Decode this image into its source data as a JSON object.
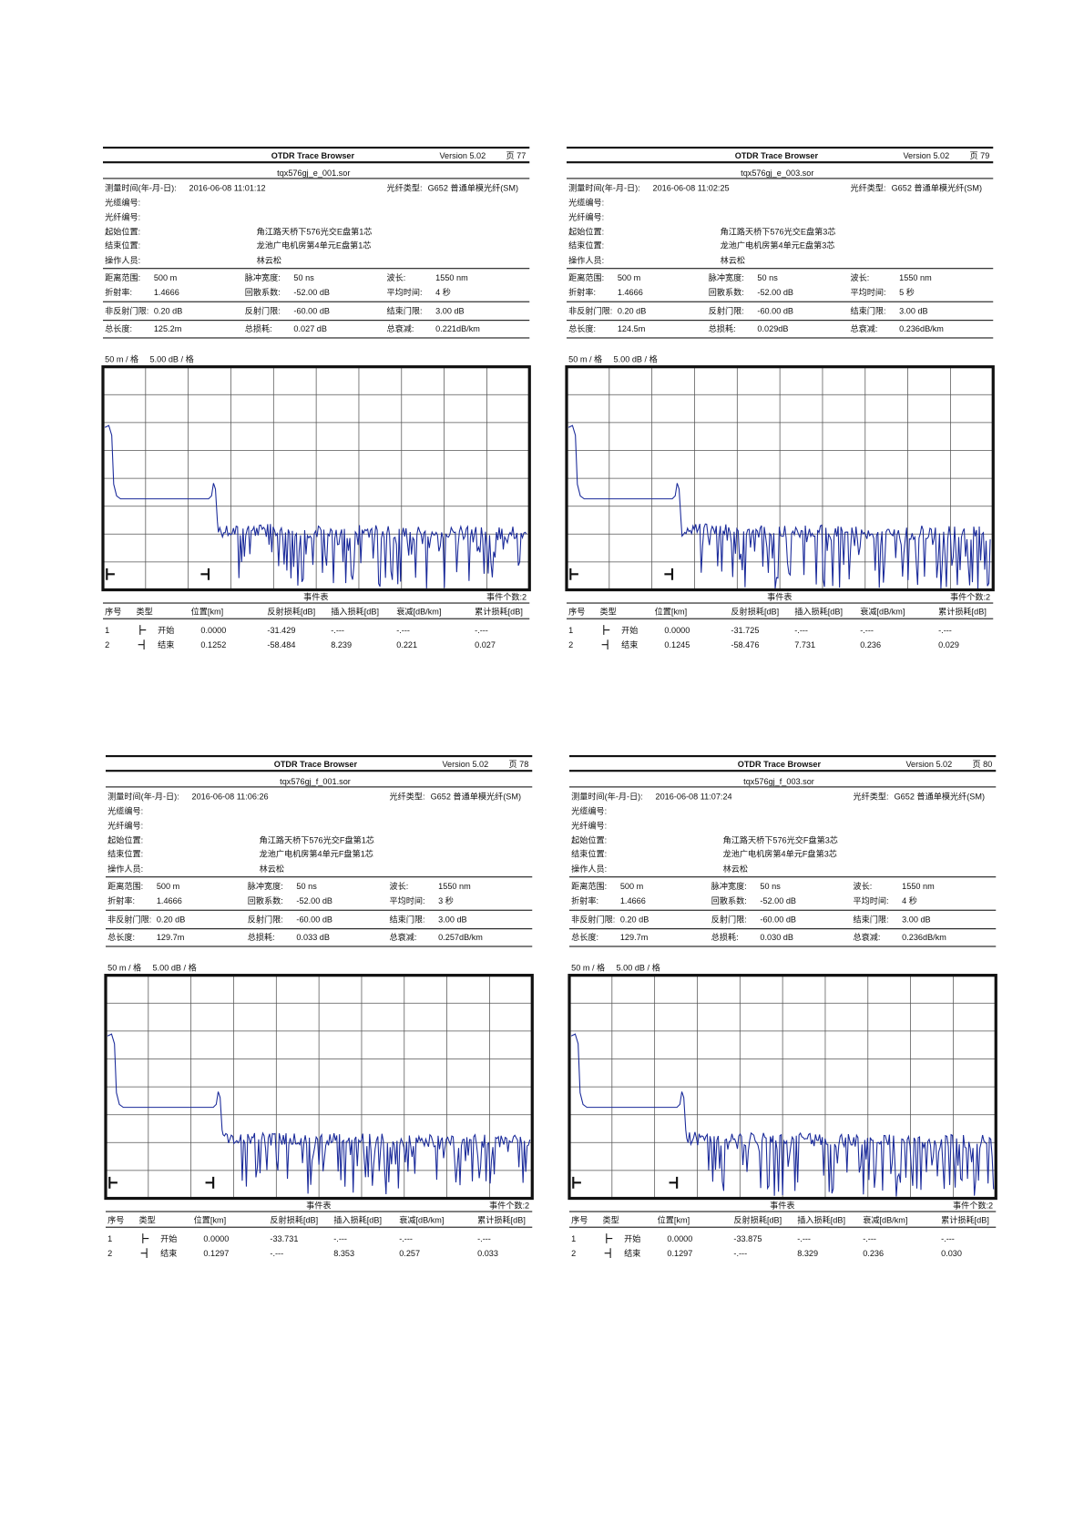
{
  "panels": [
    {
      "app": "OTDR Trace Browser",
      "version": "Version 5.02",
      "page": "页 77",
      "file": "tqx576gj_e_001.sor",
      "info": [
        {
          "label": "测量时间(年-月-日):",
          "value": "2016-06-08  11:01:12"
        },
        {
          "label": "光缆编号:"
        },
        {
          "label": "光纤编号:"
        },
        {
          "label": "起始位置:",
          "value": "角江路天桥下576光交E盘第1芯"
        },
        {
          "label": "结束位置:",
          "value": "龙池广电机房第4单元E盘第1芯"
        },
        {
          "label": "操作人员:",
          "value": "林云松"
        }
      ],
      "fiber": {
        "label": "光纤类型:",
        "value": "G652 普通单模光纤(SM)"
      },
      "params": [
        [
          {
            "label": "距离范围:",
            "value": "500 m"
          },
          {
            "label": "脉冲宽度:",
            "value": "50 ns"
          },
          {
            "label": "波长:",
            "value": "1550 nm"
          }
        ],
        [
          {
            "label": "折射率:",
            "value": "1.4666"
          },
          {
            "label": "回散系数:",
            "value": "-52.00 dB"
          },
          {
            "label": "平均时间:",
            "value": "4 秒"
          }
        ],
        [
          {
            "label": "非反射门限:",
            "value": "0.20 dB"
          },
          {
            "label": "反射门限:",
            "value": "-60.00 dB"
          },
          {
            "label": "结束门限:",
            "value": "3.00 dB"
          }
        ],
        [
          {
            "label": "总长度:",
            "value": "125.2m"
          },
          {
            "label": "总损耗:",
            "value": "0.027 dB"
          },
          {
            "label": "总衰减:",
            "value": "0.221dB/km"
          }
        ]
      ],
      "scale": [
        "50 m / 格",
        "5.00 dB / 格"
      ],
      "events_title": "事件表",
      "events_count": "事件个数:2",
      "headers": [
        "序号",
        "类型",
        "位置[km]",
        "反射损耗[dB]",
        "插入损耗[dB]",
        "衰减[dB/km]",
        "累计损耗[dB]"
      ],
      "rows": [
        [
          "1",
          "开始",
          "0.0000",
          "-31.429",
          "-.---",
          "-.---",
          "-.---"
        ],
        [
          "2",
          "结束",
          "0.1252",
          "-58.484",
          "8.239",
          "0.221",
          "0.027"
        ]
      ]
    },
    {
      "app": "OTDR Trace Browser",
      "version": "Version 5.02",
      "page": "页 79",
      "file": "tqx576gj_e_003.sor",
      "info": [
        {
          "label": "测量时间(年-月-日):",
          "value": "2016-06-08  11:02:25"
        },
        {
          "label": "光缆编号:"
        },
        {
          "label": "光纤编号:"
        },
        {
          "label": "起始位置:",
          "value": "角江路天桥下576光交E盘第3芯"
        },
        {
          "label": "结束位置:",
          "value": "龙池广电机房第4单元E盘第3芯"
        },
        {
          "label": "操作人员:",
          "value": "林云松"
        }
      ],
      "fiber": {
        "label": "光纤类型:",
        "value": "G652 普通单模光纤(SM)"
      },
      "params": [
        [
          {
            "label": "距离范围:",
            "value": "500 m"
          },
          {
            "label": "脉冲宽度:",
            "value": "50 ns"
          },
          {
            "label": "波长:",
            "value": "1550 nm"
          }
        ],
        [
          {
            "label": "折射率:",
            "value": "1.4666"
          },
          {
            "label": "回散系数:",
            "value": "-52.00 dB"
          },
          {
            "label": "平均时间:",
            "value": "5 秒"
          }
        ],
        [
          {
            "label": "非反射门限:",
            "value": "0.20 dB"
          },
          {
            "label": "反射门限:",
            "value": "-60.00 dB"
          },
          {
            "label": "结束门限:",
            "value": "3.00 dB"
          }
        ],
        [
          {
            "label": "总长度:",
            "value": "124.5m"
          },
          {
            "label": "总损耗:",
            "value": "0.029dB"
          },
          {
            "label": "总衰减:",
            "value": "0.236dB/km"
          }
        ]
      ],
      "scale": [
        "50 m / 格",
        "5.00 dB / 格"
      ],
      "events_title": "事件表",
      "events_count": "事件个数:2",
      "headers": [
        "序号",
        "类型",
        "位置[km]",
        "反射损耗[dB]",
        "插入损耗[dB]",
        "衰减[dB/km]",
        "累计损耗[dB]"
      ],
      "rows": [
        [
          "1",
          "开始",
          "0.0000",
          "-31.725",
          "-.---",
          "-.---",
          "-.---"
        ],
        [
          "2",
          "结束",
          "0.1245",
          "-58.476",
          "7.731",
          "0.236",
          "0.029"
        ]
      ]
    },
    {
      "app": "OTDR Trace Browser",
      "version": "Version 5.02",
      "page": "页 78",
      "file": "tqx576gj_f_001.sor",
      "info": [
        {
          "label": "测量时间(年-月-日):",
          "value": "2016-06-08  11:06:26"
        },
        {
          "label": "光缆编号:"
        },
        {
          "label": "光纤编号:"
        },
        {
          "label": "起始位置:",
          "value": "角江路天桥下576光交F盘第1芯"
        },
        {
          "label": "结束位置:",
          "value": "龙池广电机房第4单元F盘第1芯"
        },
        {
          "label": "操作人员:",
          "value": "林云松"
        }
      ],
      "fiber": {
        "label": "光纤类型:",
        "value": "G652 普通单模光纤(SM)"
      },
      "params": [
        [
          {
            "label": "距离范围:",
            "value": "500 m"
          },
          {
            "label": "脉冲宽度:",
            "value": "50 ns"
          },
          {
            "label": "波长:",
            "value": "1550 nm"
          }
        ],
        [
          {
            "label": "折射率:",
            "value": "1.4666"
          },
          {
            "label": "回散系数:",
            "value": "-52.00 dB"
          },
          {
            "label": "平均时间:",
            "value": "3 秒"
          }
        ],
        [
          {
            "label": "非反射门限:",
            "value": "0.20 dB"
          },
          {
            "label": "反射门限:",
            "value": "-60.00 dB"
          },
          {
            "label": "结束门限:",
            "value": "3.00 dB"
          }
        ],
        [
          {
            "label": "总长度:",
            "value": "129.7m"
          },
          {
            "label": "总损耗:",
            "value": "0.033 dB"
          },
          {
            "label": "总衰减:",
            "value": "0.257dB/km"
          }
        ]
      ],
      "scale": [
        "50 m / 格",
        "5.00 dB / 格"
      ],
      "events_title": "事件表",
      "events_count": "事件个数:2",
      "headers": [
        "序号",
        "类型",
        "位置[km]",
        "反射损耗[dB]",
        "插入损耗[dB]",
        "衰减[dB/km]",
        "累计损耗[dB]"
      ],
      "rows": [
        [
          "1",
          "开始",
          "0.0000",
          "-33.731",
          "-.---",
          "-.---",
          "-.---"
        ],
        [
          "2",
          "结束",
          "0.1297",
          "-.---",
          "8.353",
          "0.257",
          "0.033"
        ]
      ]
    },
    {
      "app": "OTDR Trace Browser",
      "version": "Version 5.02",
      "page": "页 80",
      "file": "tqx576gj_f_003.sor",
      "info": [
        {
          "label": "测量时间(年-月-日):",
          "value": "2016-06-08  11:07:24"
        },
        {
          "label": "光缆编号:"
        },
        {
          "label": "光纤编号:"
        },
        {
          "label": "起始位置:",
          "value": "角江路天桥下576光交F盘第3芯"
        },
        {
          "label": "结束位置:",
          "value": "龙池广电机房第4单元F盘第3芯"
        },
        {
          "label": "操作人员:",
          "value": "林云松"
        }
      ],
      "fiber": {
        "label": "光纤类型:",
        "value": "G652 普通单模光纤(SM)"
      },
      "params": [
        [
          {
            "label": "距离范围:",
            "value": "500 m"
          },
          {
            "label": "脉冲宽度:",
            "value": "50 ns"
          },
          {
            "label": "波长:",
            "value": "1550 nm"
          }
        ],
        [
          {
            "label": "折射率:",
            "value": "1.4666"
          },
          {
            "label": "回散系数:",
            "value": "-52.00 dB"
          },
          {
            "label": "平均时间:",
            "value": "4 秒"
          }
        ],
        [
          {
            "label": "非反射门限:",
            "value": "0.20 dB"
          },
          {
            "label": "反射门限:",
            "value": "-60.00 dB"
          },
          {
            "label": "结束门限:",
            "value": "3.00 dB"
          }
        ],
        [
          {
            "label": "总长度:",
            "value": "129.7m"
          },
          {
            "label": "总损耗:",
            "value": "0.030 dB"
          },
          {
            "label": "总衰减:",
            "value": "0.236dB/km"
          }
        ]
      ],
      "scale": [
        "50 m / 格",
        "5.00 dB / 格"
      ],
      "events_title": "事件表",
      "events_count": "事件个数:2",
      "headers": [
        "序号",
        "类型",
        "位置[km]",
        "反射损耗[dB]",
        "插入损耗[dB]",
        "衰减[dB/km]",
        "累计损耗[dB]"
      ],
      "rows": [
        [
          "1",
          "开始",
          "0.0000",
          "-33.875",
          "-.---",
          "-.---",
          "-.---"
        ],
        [
          "2",
          "结束",
          "0.1297",
          "-.---",
          "8.329",
          "0.236",
          "0.030"
        ]
      ]
    }
  ]
}
